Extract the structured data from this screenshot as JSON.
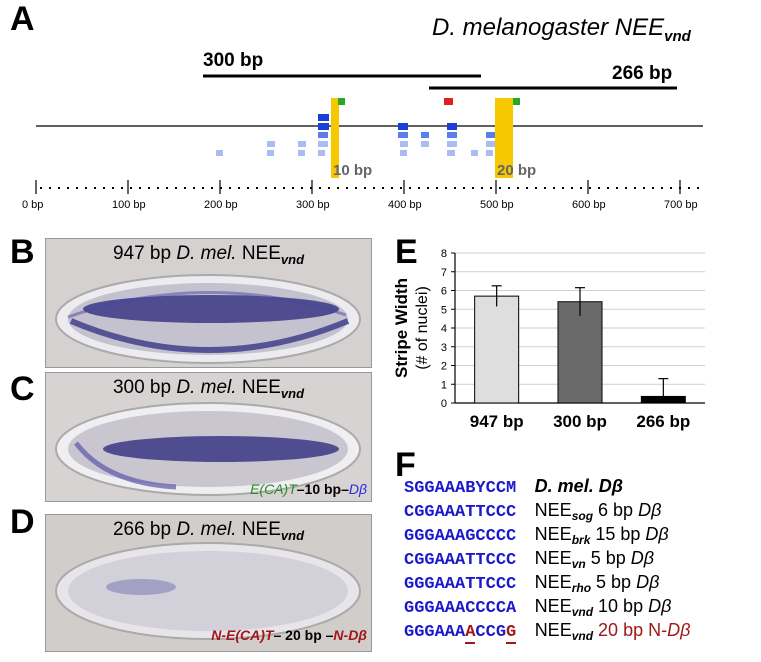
{
  "panels": {
    "A": "A",
    "B": "B",
    "C": "C",
    "D": "D",
    "E": "E",
    "F": "F"
  },
  "panelA": {
    "title_main": "D. melanogaster NEE",
    "title_sub": "vnd",
    "bar300": "300 bp",
    "bar266": "266 bp",
    "label10": "10 bp",
    "label20": "20 bp",
    "ticks": [
      "0 bp",
      "100 bp",
      "200 bp",
      "300 bp",
      "400 bp",
      "500 bp",
      "600 bp",
      "700 bp"
    ]
  },
  "panelB": {
    "prefix": "947 bp ",
    "italic": "D. mel.",
    "nee": " NEE",
    "sub": "vnd"
  },
  "panelC": {
    "prefix": "300 bp ",
    "italic": "D. mel.",
    "nee": " NEE",
    "sub": "vnd",
    "caption_green": "E(CA)T",
    "caption_mid": "–10 bp–",
    "caption_blue": "Dβ"
  },
  "panelD": {
    "prefix": "266 bp ",
    "italic": "D. mel.",
    "nee": " NEE",
    "sub": "vnd",
    "caption_red1": "N-E(CA)T",
    "caption_mid": "– 20 bp –",
    "caption_red2": "N-Dβ"
  },
  "chart_data": {
    "type": "bar",
    "categories": [
      "947 bp",
      "300 bp",
      "266 bp"
    ],
    "values": [
      5.7,
      5.4,
      0.35
    ],
    "errors": [
      0.55,
      0.75,
      0.95
    ],
    "colors": [
      "#dedede",
      "#6a6a6a",
      "#000000"
    ],
    "ylabel": "Stripe Width",
    "ylabel2": "(# of nuclei)",
    "ylim": [
      0,
      8
    ],
    "yticks": [
      "0",
      "1",
      "2",
      "3",
      "4",
      "5",
      "6",
      "7",
      "8"
    ],
    "grid": true
  },
  "panelF": {
    "rows": [
      {
        "seq": "SGGAAABYCCM",
        "label_main": "D. mel. Dβ"
      },
      {
        "seq": "CGGAAATTCCC",
        "nee": "NEE",
        "sub": "sog",
        "rest": " 6 bp ",
        "db": "Dβ"
      },
      {
        "seq": "GGGAAAGCCCC",
        "nee": "NEE",
        "sub": "brk",
        "rest": " 15 bp ",
        "db": "Dβ"
      },
      {
        "seq": "CGGAAATTCCC",
        "nee": "NEE",
        "sub": "vn",
        "rest": " 5 bp ",
        "db": "Dβ"
      },
      {
        "seq": "GGGAAATTCCC",
        "nee": "NEE",
        "sub": "rho",
        "rest": " 5 bp ",
        "db": "Dβ"
      },
      {
        "seq": "GGGAAACCCCA",
        "nee": "NEE",
        "sub": "vnd",
        "rest": " 10 bp ",
        "db": "Dβ"
      }
    ],
    "last": {
      "seq_a": "GGGAAA",
      "seq_b": "A",
      "seq_c": "CCG",
      "seq_d": "G",
      "nee": "NEE",
      "sub": "vnd",
      "rest": " 20 bp N-",
      "db": "Dβ"
    }
  }
}
